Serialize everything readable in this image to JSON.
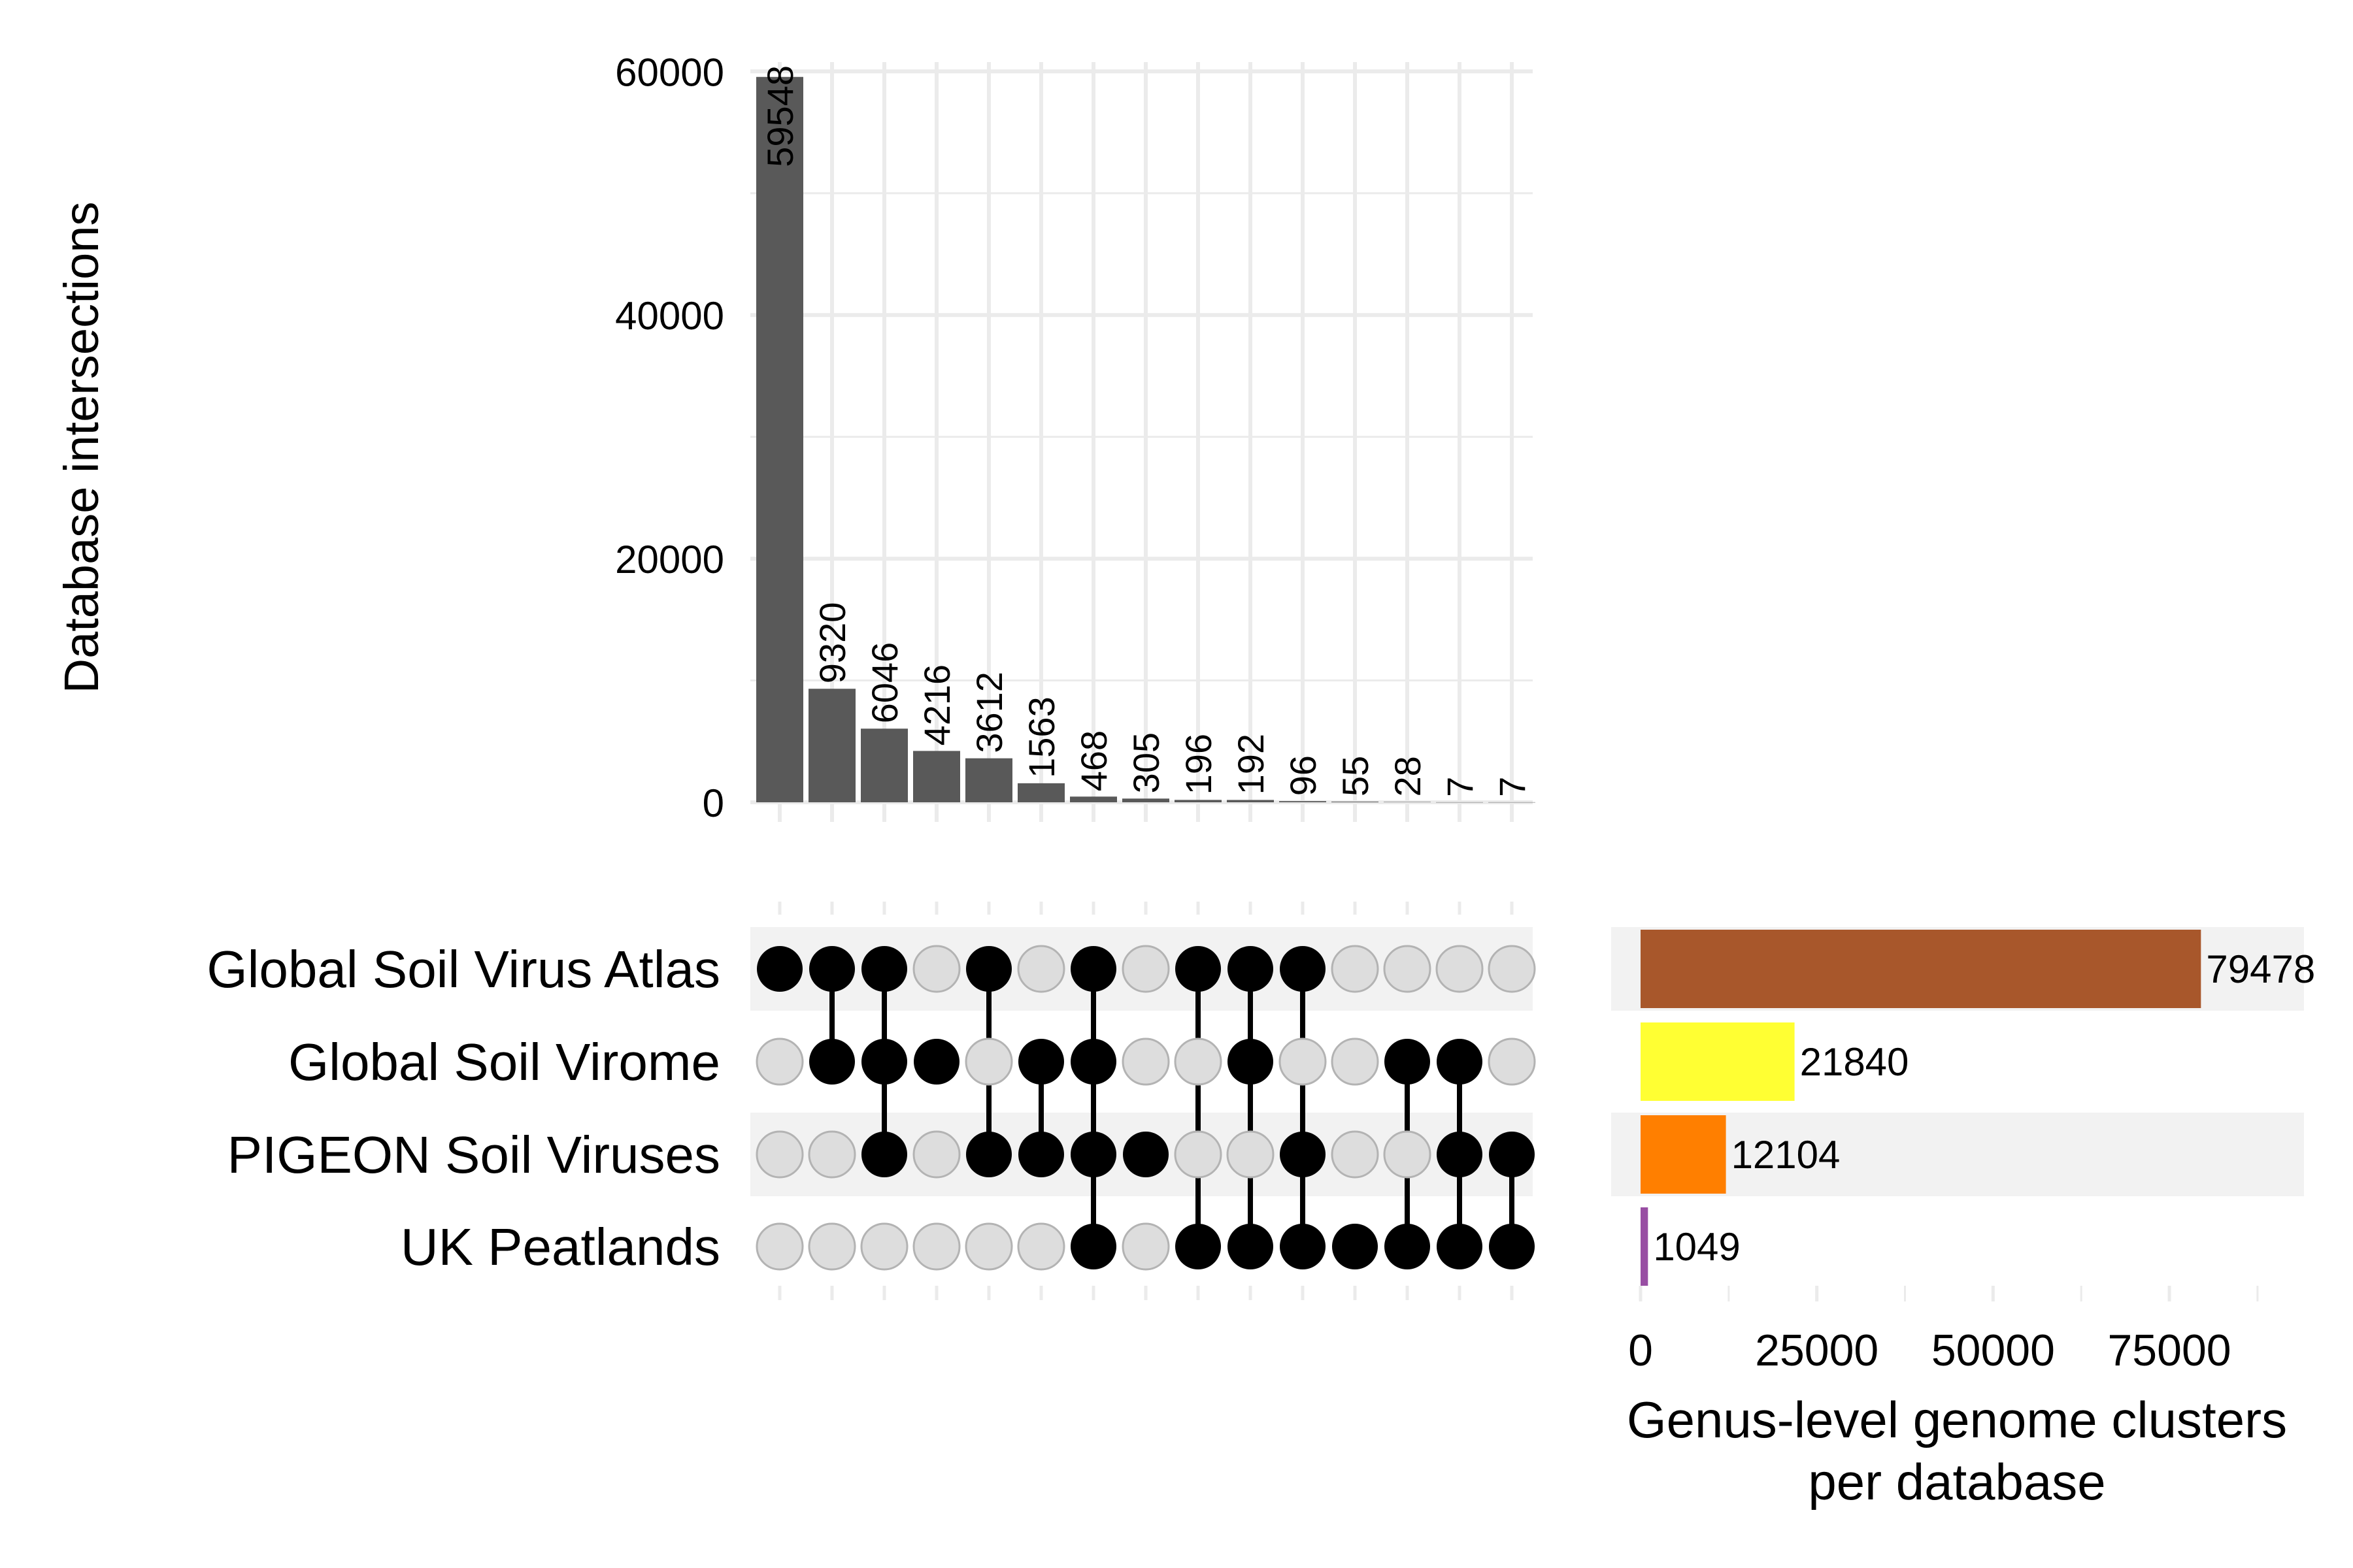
{
  "chart_data": {
    "type": "bar",
    "subtype": "upset",
    "intersections": {
      "ylabel": "Database intersections",
      "ylim": [
        0,
        62000
      ],
      "yticks": [
        0,
        20000,
        40000,
        60000
      ],
      "ytick_labels": [
        "0",
        "20000",
        "40000",
        "60000"
      ],
      "values": [
        59548,
        9320,
        6046,
        4216,
        3612,
        1563,
        468,
        305,
        196,
        192,
        96,
        55,
        28,
        7,
        7
      ],
      "value_labels": [
        "59548",
        "9320",
        "6046",
        "4216",
        "3612",
        "1563",
        "468",
        "305",
        "196",
        "192",
        "96",
        "55",
        "28",
        "7",
        "7"
      ],
      "bar_color": "#595959",
      "grid": true
    },
    "sets": {
      "names": [
        "Global Soil Virus Atlas",
        "Global Soil Virome",
        "PIGEON Soil Viruses",
        "UK Peatlands"
      ],
      "membership": [
        [
          1,
          0,
          0,
          0
        ],
        [
          1,
          1,
          0,
          0
        ],
        [
          1,
          1,
          1,
          0
        ],
        [
          0,
          1,
          0,
          0
        ],
        [
          1,
          0,
          1,
          0
        ],
        [
          0,
          1,
          1,
          0
        ],
        [
          1,
          1,
          1,
          1
        ],
        [
          0,
          0,
          1,
          0
        ],
        [
          1,
          0,
          0,
          1
        ],
        [
          1,
          1,
          0,
          1
        ],
        [
          1,
          0,
          1,
          1
        ],
        [
          0,
          0,
          0,
          1
        ],
        [
          0,
          1,
          0,
          1
        ],
        [
          0,
          1,
          1,
          1
        ],
        [
          0,
          0,
          1,
          1
        ]
      ],
      "active_color": "#000000",
      "inactive_color": "#dddddd",
      "band_color": "#f2f2f2"
    },
    "set_sizes": {
      "xlabel_line1": "Genus-level genome clusters",
      "xlabel_line2": "per database",
      "xlim": [
        0,
        94000
      ],
      "xticks": [
        0,
        25000,
        50000,
        75000
      ],
      "xtick_labels": [
        "0",
        "25000",
        "50000",
        "75000"
      ],
      "values": [
        79478,
        21840,
        12104,
        1049
      ],
      "value_labels": [
        "79478",
        "21840",
        "12104",
        "1049"
      ],
      "colors": [
        "#a8572b",
        "#ffff33",
        "#ff7f00",
        "#984ea3"
      ]
    }
  }
}
